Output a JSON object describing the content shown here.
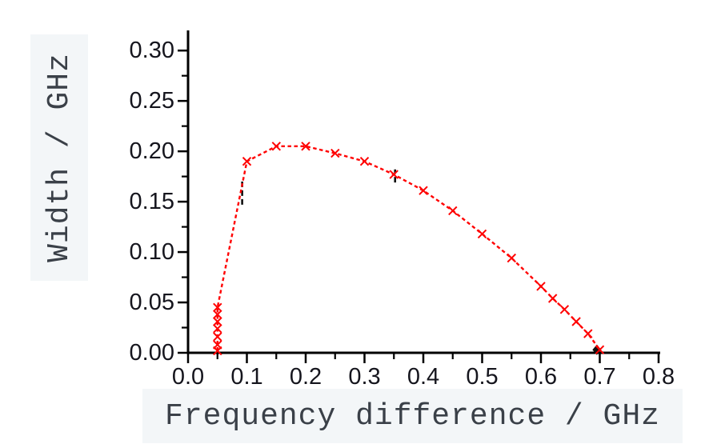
{
  "figure": {
    "background": "#ffffff",
    "label_bg": "#f3f6f8",
    "axis_label_color": "#3a4048",
    "tick_label_color": "#15151d",
    "axis_color": "#000000"
  },
  "chart_data": {
    "type": "line",
    "title": "",
    "xlabel": "Frequency difference / GHz",
    "ylabel": "Width / GHz",
    "xlim": [
      0,
      0.8
    ],
    "ylim": [
      0,
      0.32
    ],
    "grid": false,
    "legend": "none",
    "x_ticks": {
      "values": [
        0,
        0.1,
        0.2,
        0.3,
        0.4,
        0.5,
        0.6,
        0.7,
        0.8
      ],
      "labels": [
        "0.0",
        "0.1",
        "0.2",
        "0.3",
        "0.4",
        "0.5",
        "0.6",
        "0.7",
        "0.8"
      ],
      "minor_values": [
        0.05,
        0.15,
        0.25,
        0.35,
        0.45,
        0.55,
        0.65,
        0.75
      ]
    },
    "y_ticks": {
      "values": [
        0,
        0.05,
        0.1,
        0.15,
        0.2,
        0.25,
        0.3
      ],
      "labels": [
        "0.00",
        "0.05",
        "0.10",
        "0.15",
        "0.20",
        "0.25",
        "0.30"
      ],
      "minor_values": [
        0.025,
        0.075,
        0.125,
        0.175,
        0.225,
        0.275
      ]
    },
    "series": [
      {
        "name": "width-vs-frequency-difference",
        "color": "#ff0000",
        "marker": "x",
        "line_style": "dashed",
        "points": [
          [
            0.05,
            0.002
          ],
          [
            0.05,
            0.008
          ],
          [
            0.05,
            0.016
          ],
          [
            0.05,
            0.024
          ],
          [
            0.05,
            0.031
          ],
          [
            0.05,
            0.038
          ],
          [
            0.05,
            0.045
          ],
          [
            0.1,
            0.19
          ],
          [
            0.15,
            0.205
          ],
          [
            0.2,
            0.205
          ],
          [
            0.25,
            0.198
          ],
          [
            0.3,
            0.19
          ],
          [
            0.35,
            0.177
          ],
          [
            0.4,
            0.161
          ],
          [
            0.45,
            0.141
          ],
          [
            0.5,
            0.118
          ],
          [
            0.55,
            0.094
          ],
          [
            0.6,
            0.066
          ],
          [
            0.62,
            0.054
          ],
          [
            0.64,
            0.043
          ],
          [
            0.66,
            0.031
          ],
          [
            0.68,
            0.019
          ],
          [
            0.7,
            0.003
          ]
        ]
      }
    ],
    "annotations": [
      {
        "type": "dash",
        "color": "#111111",
        "x": 0.092,
        "y_from": 0.147,
        "y_to": 0.171
      },
      {
        "type": "dash",
        "color": "#111111",
        "x": 0.352,
        "y_from": 0.169,
        "y_to": 0.182
      },
      {
        "type": "diamond",
        "color": "#111111",
        "x": 0.695,
        "y": 0.003
      }
    ]
  }
}
